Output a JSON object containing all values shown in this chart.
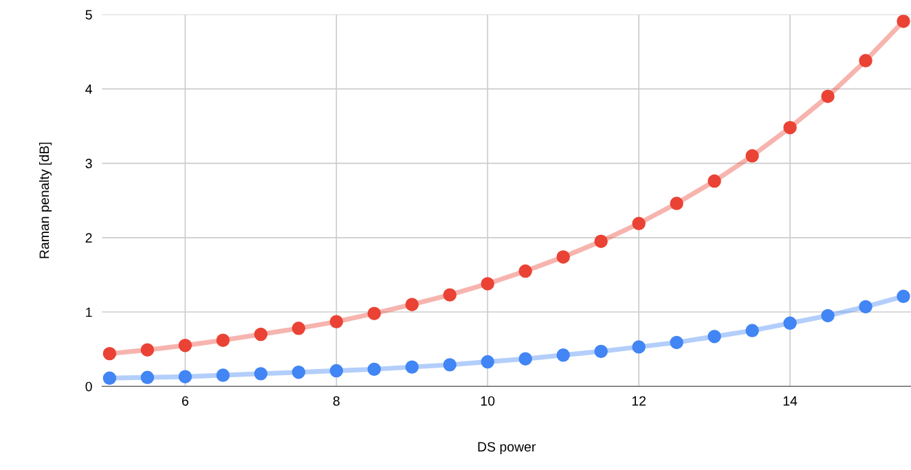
{
  "chart_data": {
    "type": "line",
    "xlabel": "DS power",
    "ylabel": "Raman penalty [dB]",
    "x": [
      5,
      5.5,
      6,
      6.5,
      7,
      7.5,
      8,
      8.5,
      9,
      9.5,
      10,
      10.5,
      11,
      11.5,
      12,
      12.5,
      13,
      13.5,
      14,
      14.5,
      15,
      15.5
    ],
    "series": [
      {
        "color": "#ea4335",
        "values": [
          0.44,
          0.49,
          0.55,
          0.62,
          0.7,
          0.78,
          0.87,
          0.98,
          1.1,
          1.23,
          1.38,
          1.55,
          1.74,
          1.95,
          2.19,
          2.46,
          2.76,
          3.1,
          3.48,
          3.9,
          4.38,
          4.91
        ]
      },
      {
        "color": "#4285f4",
        "values": [
          0.11,
          0.12,
          0.13,
          0.15,
          0.17,
          0.19,
          0.21,
          0.23,
          0.26,
          0.29,
          0.33,
          0.37,
          0.42,
          0.47,
          0.53,
          0.59,
          0.67,
          0.75,
          0.85,
          0.95,
          1.07,
          1.21
        ]
      }
    ],
    "xlim": [
      4.9,
      15.6
    ],
    "xticks": [
      6,
      8,
      10,
      12,
      14
    ],
    "ylim": [
      0,
      5
    ],
    "yticks": [
      0,
      1,
      2,
      3,
      4,
      5
    ],
    "grid": true,
    "marker": "circle",
    "line_style": "solid"
  }
}
